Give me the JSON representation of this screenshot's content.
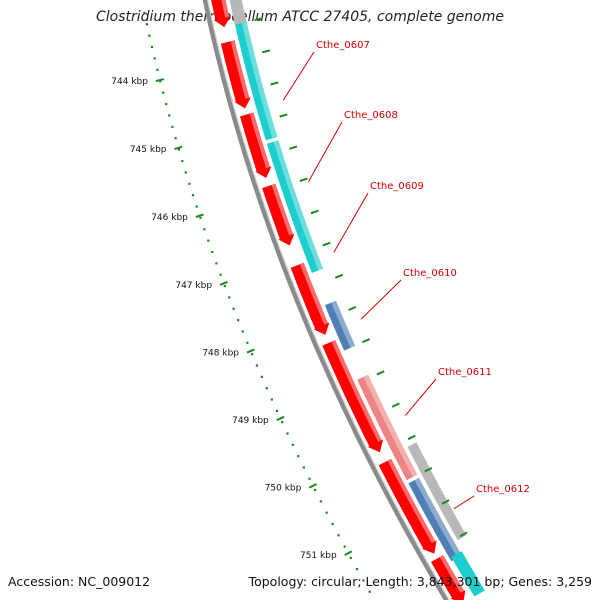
{
  "header": {
    "title": "Clostridium thermocellum ATCC 27405, complete genome"
  },
  "footer": {
    "accession_label": "Accession:",
    "accession_value": "NC_009012",
    "topology_label": "Topology:",
    "topology_value": "circular",
    "length_label": "Length:",
    "length_value": "3,843,301 bp",
    "genes_label": "Genes:",
    "genes_value": "3,259"
  },
  "scale": {
    "ticks": [
      {
        "kbp": 744,
        "label": "744 kbp"
      },
      {
        "kbp": 745,
        "label": "745 kbp"
      },
      {
        "kbp": 746,
        "label": "746 kbp"
      },
      {
        "kbp": 747,
        "label": "747 kbp"
      },
      {
        "kbp": 748,
        "label": "748 kbp"
      },
      {
        "kbp": 749,
        "label": "749 kbp"
      },
      {
        "kbp": 750,
        "label": "750 kbp"
      },
      {
        "kbp": 751,
        "label": "751 kbp"
      }
    ]
  },
  "genes": [
    {
      "name": "Cthe_0607",
      "color": "#1ecdcd",
      "start_kbp": 743.55,
      "end_kbp": 745.35
    },
    {
      "name": "Cthe_0608",
      "color": "#1ecdcd",
      "start_kbp": 745.4,
      "end_kbp": 746.85
    },
    {
      "name": "Cthe_0609",
      "color": "#1ecdcd",
      "start_kbp": 746.85,
      "end_kbp": 747.4
    },
    {
      "name": "Cthe_0610",
      "color": "#4f7fb5",
      "start_kbp": 747.9,
      "end_kbp": 748.6
    },
    {
      "name": "Cthe_0611",
      "color": "#ef8484",
      "start_kbp": 749.05,
      "end_kbp": 750.6
    },
    {
      "name": "Cthe_0612",
      "color": "#4f7fb5",
      "start_kbp": 750.65,
      "end_kbp": 751.85
    }
  ],
  "colors": {
    "backbone": "#8a8a8a",
    "cds_track": "#ff0000",
    "tick_green": "#1a8a1a",
    "gene_label": "#d40000",
    "grey_gene": "#b8b8b8"
  }
}
